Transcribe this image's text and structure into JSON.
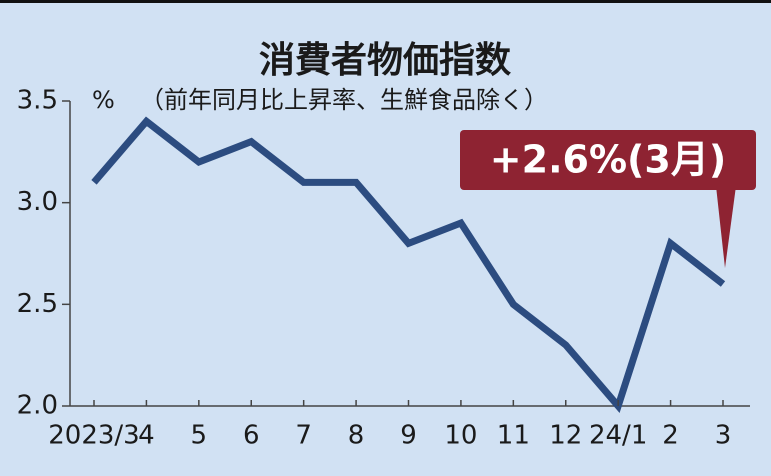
{
  "chart_data": {
    "type": "line",
    "title": "消費者物価指数",
    "y_unit": "%",
    "subtitle": "（前年同月比上昇率、生鮮食品除く）",
    "annotation": "+2.6%(3月)",
    "categories": [
      "2023/3",
      "4",
      "5",
      "6",
      "7",
      "8",
      "9",
      "10",
      "11",
      "12",
      "24/1",
      "2",
      "3"
    ],
    "values": [
      3.1,
      3.4,
      3.2,
      3.3,
      3.1,
      3.1,
      2.8,
      2.9,
      2.5,
      2.3,
      2.0,
      2.8,
      2.6
    ],
    "color": "#2c4c80",
    "ylim": [
      2.0,
      3.5
    ],
    "yticks": [
      {
        "value": 2.0,
        "label": "2.0"
      },
      2.5,
      {
        "value": 3.0,
        "label": "3.0"
      },
      3.5
    ]
  }
}
